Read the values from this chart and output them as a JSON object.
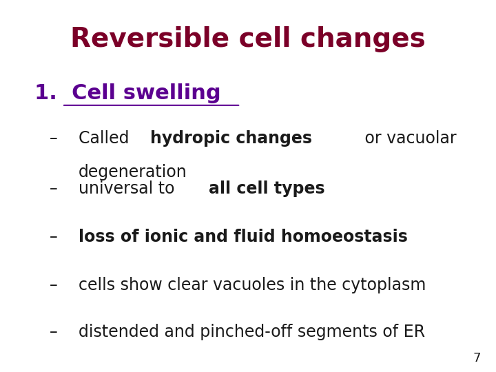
{
  "title": "Reversible cell changes",
  "title_color": "#7B0028",
  "title_fontsize": 28,
  "title_bold": true,
  "background_color": "#ffffff",
  "heading_number": "1.",
  "heading_text": "Cell swelling",
  "heading_color": "#5B0090",
  "heading_fontsize": 22,
  "heading_bold": true,
  "heading_underline": true,
  "bullet_color": "#1a1a1a",
  "bullet_fontsize": 17,
  "bullets": [
    {
      "parts": [
        {
          "text": "Called ",
          "bold": false
        },
        {
          "text": "hydropic changes",
          "bold": true
        },
        {
          "text": " or vacuolar",
          "bold": false
        }
      ],
      "line2": "degeneration"
    },
    {
      "parts": [
        {
          "text": "universal to ",
          "bold": false
        },
        {
          "text": "all cell types",
          "bold": true
        }
      ],
      "line2": null
    },
    {
      "parts": [
        {
          "text": "loss of ionic and fluid homoeostasis",
          "bold": true
        }
      ],
      "line2": null
    },
    {
      "parts": [
        {
          "text": "cells show clear vacuoles in the cytoplasm",
          "bold": false
        }
      ],
      "line2": null
    },
    {
      "parts": [
        {
          "text": "distended and pinched-off segments of ER",
          "bold": false
        }
      ],
      "line2": null
    }
  ],
  "page_number": "7",
  "page_number_fontsize": 13,
  "dash": "–"
}
